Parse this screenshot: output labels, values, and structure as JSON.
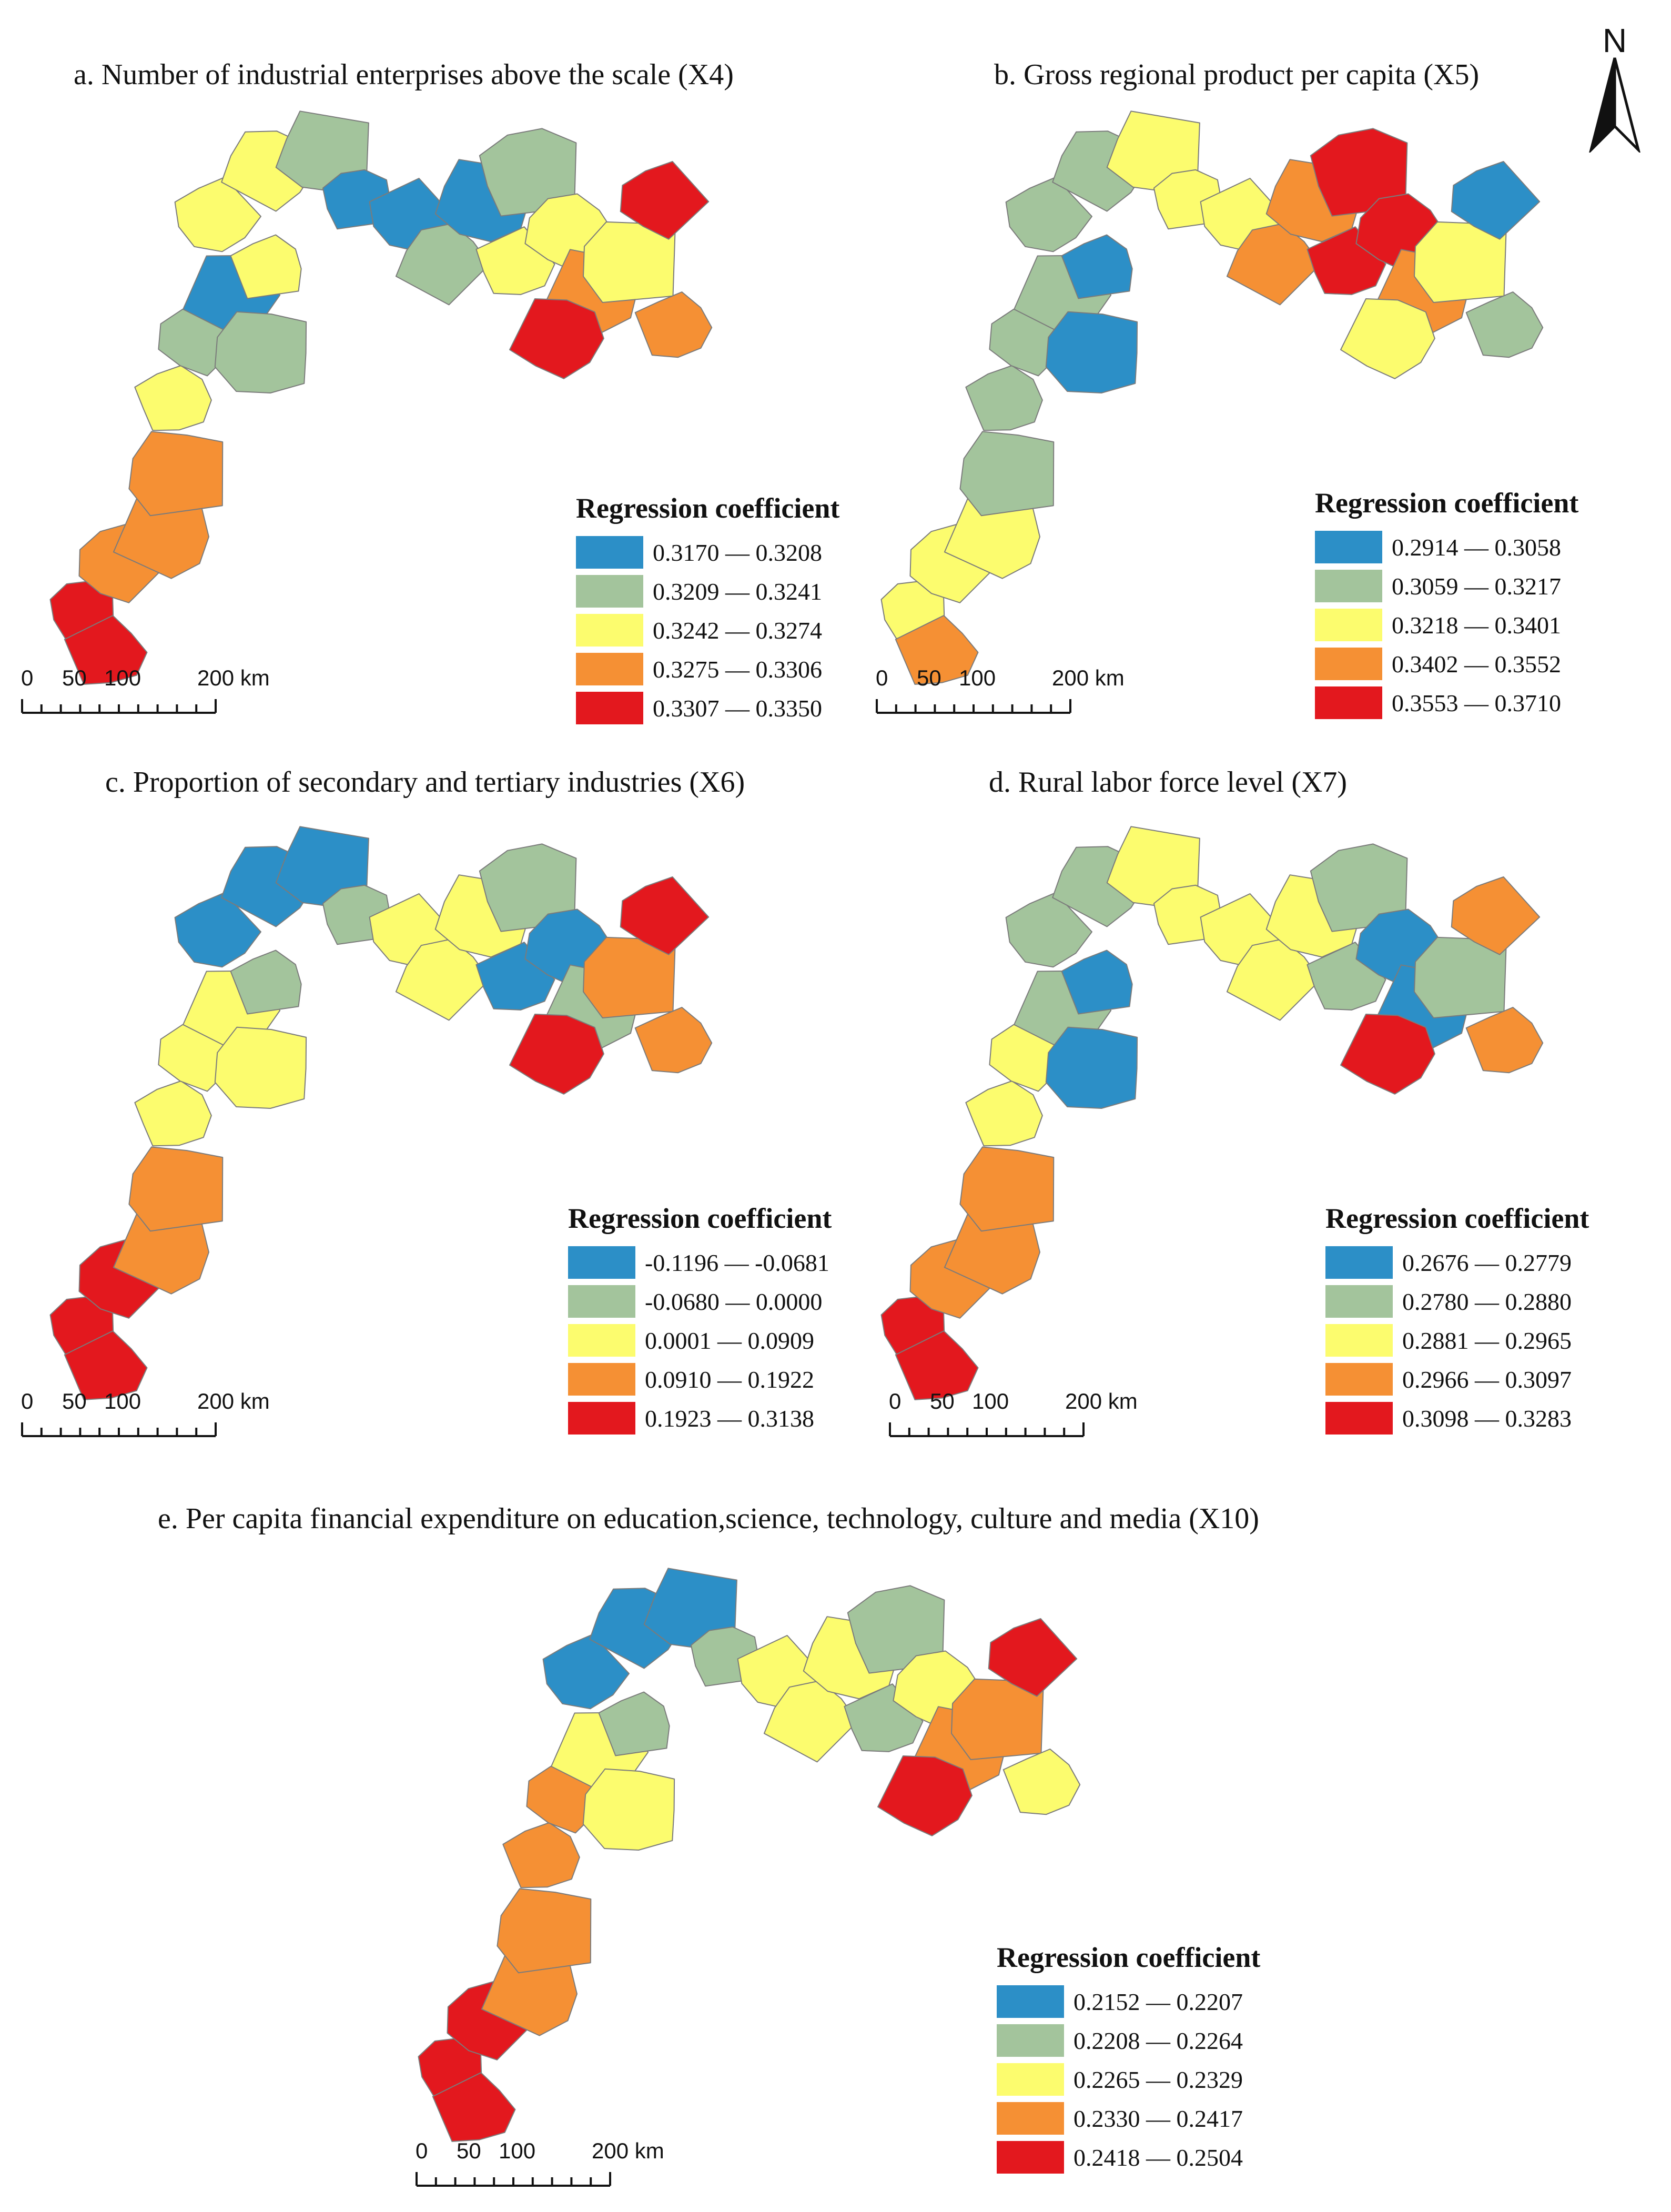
{
  "north_arrow": {
    "label": "N"
  },
  "colors": {
    "class1": "#2c8fc7",
    "class2": "#a3c49c",
    "class3": "#fcfc6e",
    "class4": "#f59034",
    "class5": "#e3181e",
    "outline": "#7b7b7b"
  },
  "scale": {
    "zero": "0",
    "fifty": "50",
    "hundred": "100",
    "two_hundred": "200 km"
  },
  "panels": [
    {
      "id": "a",
      "title": "a. Number of industrial enterprises above the scale (X4)",
      "legend_title": "Regression coefficient",
      "classes": [
        "0.3170 — 0.3208",
        "0.3209 — 0.3241",
        "0.3242 — 0.3274",
        "0.3275 — 0.3306",
        "0.3307 — 0.3350"
      ]
    },
    {
      "id": "b",
      "title": "b. Gross regional product per capita (X5)",
      "legend_title": "Regression coefficient",
      "classes": [
        "0.2914 — 0.3058",
        "0.3059 — 0.3217",
        "0.3218 — 0.3401",
        "0.3402 — 0.3552",
        "0.3553 — 0.3710"
      ]
    },
    {
      "id": "c",
      "title": "c. Proportion of secondary and tertiary industries (X6)",
      "legend_title": "Regression coefficient",
      "classes": [
        "-0.1196 — -0.0681",
        "-0.0680 — 0.0000",
        "0.0001 — 0.0909",
        "0.0910 — 0.1922",
        "0.1923 — 0.3138"
      ]
    },
    {
      "id": "d",
      "title": "d. Rural labor force level (X7)",
      "legend_title": "Regression coefficient",
      "classes": [
        "0.2676 — 0.2779",
        "0.2780 — 0.2880",
        "0.2881 — 0.2965",
        "0.2966 — 0.3097",
        "0.3098 — 0.3283"
      ]
    },
    {
      "id": "e",
      "title": "e. Per capita financial expenditure on education,science, technology, culture and media (X10)",
      "legend_title": "Regression coefficient",
      "classes": [
        "0.2152 — 0.2207",
        "0.2208 — 0.2264",
        "0.2265 — 0.2329",
        "0.2330 — 0.2417",
        "0.2418 — 0.2504"
      ]
    }
  ],
  "region_classes": {
    "a": [
      5,
      5,
      4,
      4,
      4,
      3,
      2,
      1,
      2,
      3,
      3,
      3,
      2,
      1,
      1,
      2,
      1,
      2,
      3,
      3,
      4,
      3,
      4,
      5,
      5
    ],
    "b": [
      3,
      4,
      3,
      3,
      2,
      2,
      2,
      2,
      1,
      1,
      2,
      2,
      3,
      3,
      3,
      4,
      4,
      5,
      5,
      5,
      4,
      3,
      2,
      1,
      3
    ],
    "c": [
      5,
      5,
      5,
      4,
      4,
      3,
      3,
      3,
      3,
      2,
      1,
      1,
      1,
      2,
      3,
      3,
      3,
      2,
      1,
      1,
      2,
      4,
      4,
      5,
      5
    ],
    "d": [
      5,
      5,
      4,
      4,
      4,
      3,
      3,
      2,
      1,
      1,
      2,
      2,
      3,
      3,
      3,
      3,
      3,
      2,
      2,
      1,
      1,
      2,
      4,
      4,
      5
    ],
    "e": [
      5,
      5,
      5,
      4,
      4,
      4,
      4,
      3,
      3,
      2,
      1,
      1,
      1,
      2,
      3,
      3,
      3,
      2,
      2,
      3,
      4,
      4,
      3,
      5,
      5
    ]
  }
}
